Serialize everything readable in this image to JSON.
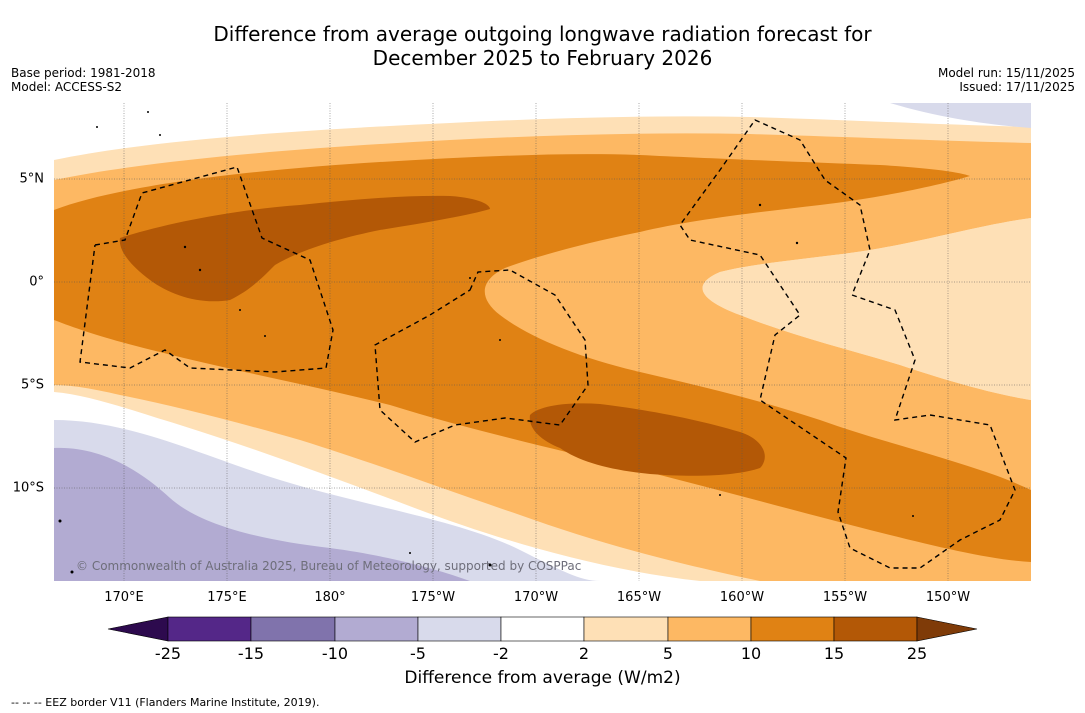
{
  "title": {
    "line1": "Difference from average outgoing longwave radiation forecast for",
    "line2": "December 2025 to February 2026"
  },
  "meta_left": {
    "base_period": "Base period: 1981-2018",
    "model": "Model: ACCESS-S2"
  },
  "meta_right": {
    "model_run": "Model run: 15/11/2025",
    "issued": "Issued: 17/11/2025"
  },
  "map": {
    "lon_labels": [
      "170°E",
      "175°E",
      "180°",
      "175°W",
      "170°W",
      "165°W",
      "160°W",
      "155°W",
      "150°W"
    ],
    "lat_labels": [
      "5°N",
      "0°",
      "5°S",
      "10°S"
    ],
    "copyright": "© Commonwealth of Australia 2025, Bureau of Meteorology, supported by COSPPac"
  },
  "colorbar": {
    "ticks": [
      "-25",
      "-15",
      "-10",
      "-5",
      "-2",
      "2",
      "5",
      "10",
      "15",
      "25"
    ],
    "colors": {
      "lt_neg25": "#2d0a4e",
      "neg25_neg15": "#542788",
      "neg15_neg10": "#8073ac",
      "neg10_neg5": "#b2abd2",
      "neg5_neg2": "#d8daeb",
      "neg2_2": "#ffffff",
      "p2_5": "#fee0b6",
      "p5_10": "#fdb863",
      "p10_15": "#e08214",
      "p15_25": "#b35806",
      "gt_25": "#7f3b08"
    },
    "label": "Difference from average (W/m2)"
  },
  "legend_note": "--  --  -- EEZ border V11 (Flanders Marine Institute, 2019)."
}
